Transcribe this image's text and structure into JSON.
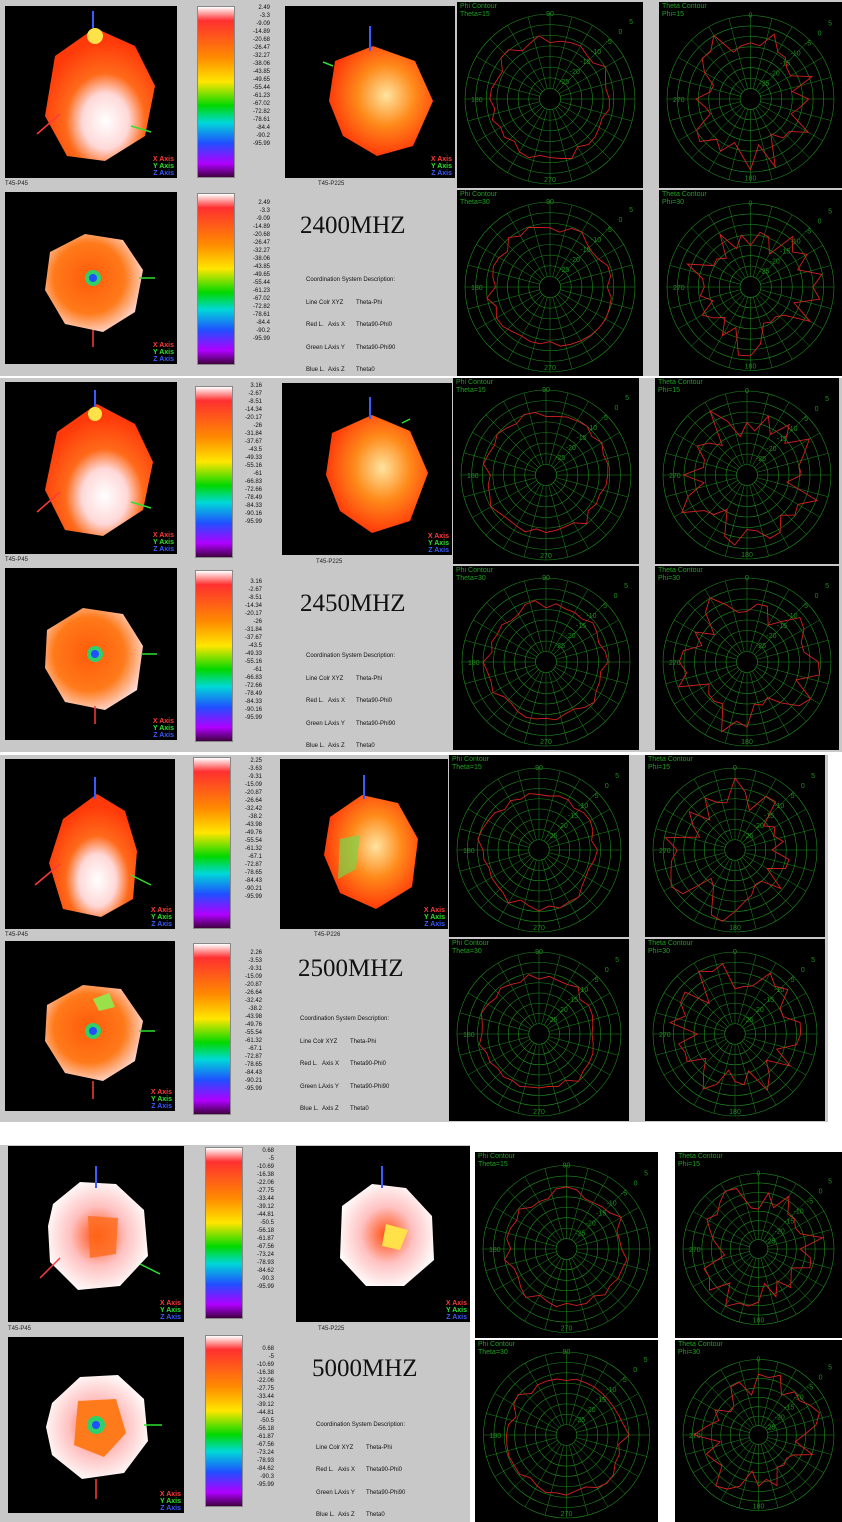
{
  "colors": {
    "panel_bg": "#c8c8c8",
    "view_bg": "#000000",
    "grid": "#1f8f1f",
    "trace": "#d42020",
    "x_axis": "#ff3a3a",
    "y_axis": "#2fe02f",
    "z_axis": "#3a5bff"
  },
  "axis_legend": {
    "x": "X Axis",
    "y": "Y Axis",
    "z": "Z Axis"
  },
  "coordination": {
    "title": "Coordination System Description:",
    "header": [
      "Line Colr XYZ",
      "Theta-Phi"
    ],
    "rows": [
      [
        "Red L.",
        "Axis X",
        "Theta90-Phi0"
      ],
      [
        "Green L.",
        "Axis Y",
        "Theta90-Phi90"
      ],
      [
        "Blue L.",
        "Axis Z",
        "Theta0"
      ]
    ]
  },
  "polar_labels": {
    "phi_contour": "Phi Contour",
    "theta_contour": "Theta Contour",
    "theta15": "Theta=15",
    "theta30": "Theta=30",
    "phi15": "Phi=15",
    "phi30": "Phi=30",
    "phi_ticks": [
      "90",
      "180",
      "270"
    ],
    "theta_ticks": [
      "0",
      "270",
      "180"
    ],
    "rings": [
      "5",
      "0",
      "-5",
      "-10",
      "-15",
      "-20",
      "-25"
    ]
  },
  "bands": [
    {
      "freq": "2400MHZ",
      "caption_left": "T45-P45",
      "caption_right": "T45-P225",
      "scale": [
        "2.49",
        "-3.3",
        "-9.09",
        "-14.89",
        "-20.68",
        "-26.47",
        "-32.27",
        "-38.06",
        "-43.85",
        "-49.65",
        "-55.44",
        "-61.23",
        "-67.02",
        "-72.82",
        "-78.61",
        "-84.4",
        "-90.2",
        "-95.99"
      ]
    },
    {
      "freq": "2450MHZ",
      "caption_left": "T45-P45",
      "caption_right": "T45-P225",
      "scale": [
        "3.16",
        "-2.67",
        "-8.51",
        "-14.34",
        "-20.17",
        "-26",
        "-31.84",
        "-37.67",
        "-43.5",
        "-49.33",
        "-55.16",
        "-61",
        "-66.83",
        "-72.66",
        "-78.49",
        "-84.33",
        "-90.16",
        "-95.99"
      ]
    },
    {
      "freq": "2500MHZ",
      "caption_left": "T45-P45",
      "caption_right": "T45-P226",
      "scale": [
        "2.25",
        "-3.63",
        "-9.31",
        "-15.09",
        "-20.87",
        "-26.64",
        "-32.42",
        "-38.2",
        "-43.98",
        "-49.76",
        "-55.54",
        "-61.32",
        "-67.1",
        "-72.87",
        "-78.65",
        "-84.43",
        "-90.21",
        "-95.99"
      ],
      "scale2": [
        "2.26",
        "-3.53",
        "-9.31",
        "-15.09",
        "-20.87",
        "-26.64",
        "-32.42",
        "-38.2",
        "-43.98",
        "-49.76",
        "-55.54",
        "-61.32",
        "-67.1",
        "-72.87",
        "-78.65",
        "-84.43",
        "-90.21",
        "-95.99"
      ]
    },
    {
      "freq": "5000MHZ",
      "caption_left": "T45-P45",
      "caption_right": "T45-P225",
      "scale": [
        "0.68",
        "-5",
        "-10.69",
        "-16.38",
        "-22.06",
        "-27.75",
        "-33.44",
        "-39.12",
        "-44.81",
        "-50.5",
        "-56.18",
        "-61.87",
        "-67.56",
        "-73.24",
        "-78.93",
        "-84.62",
        "-90.3",
        "-95.99"
      ]
    }
  ]
}
